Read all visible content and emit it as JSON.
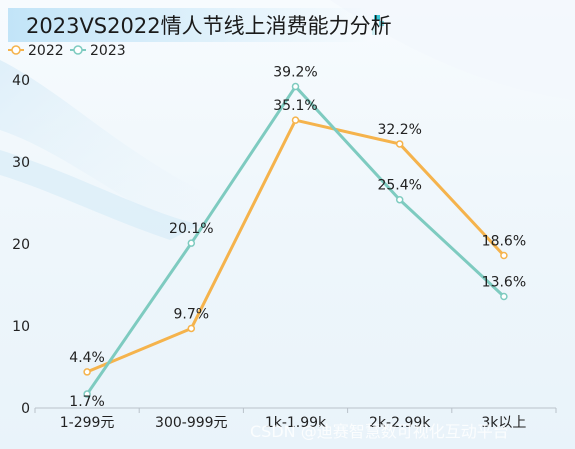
{
  "chart_data": {
    "type": "line",
    "title": "2023VS2022情人节线上消费能力分析",
    "categories": [
      "1-299元",
      "300-999元",
      "1k-1.99k",
      "2k-2.99k",
      "3k以上"
    ],
    "series": [
      {
        "name": "2022",
        "color": "#f5b34c",
        "values": [
          4.4,
          9.7,
          35.1,
          32.2,
          18.6
        ],
        "labels": [
          "4.4%",
          "9.7%",
          "35.1%",
          "32.2%",
          "18.6%"
        ]
      },
      {
        "name": "2023",
        "color": "#7ecbc0",
        "values": [
          1.7,
          20.1,
          39.2,
          25.4,
          13.6
        ],
        "labels": [
          "1.7%",
          "20.1%",
          "39.2%",
          "25.4%",
          "13.6%"
        ]
      }
    ],
    "ylim": [
      0,
      40
    ],
    "yticks": [
      "0",
      "10",
      "20",
      "30",
      "40"
    ],
    "xlabel": "",
    "ylabel": "",
    "legend_position": "top-left",
    "grid": false
  },
  "watermark": "CSDN @迪赛智慧数可视化互动平台"
}
